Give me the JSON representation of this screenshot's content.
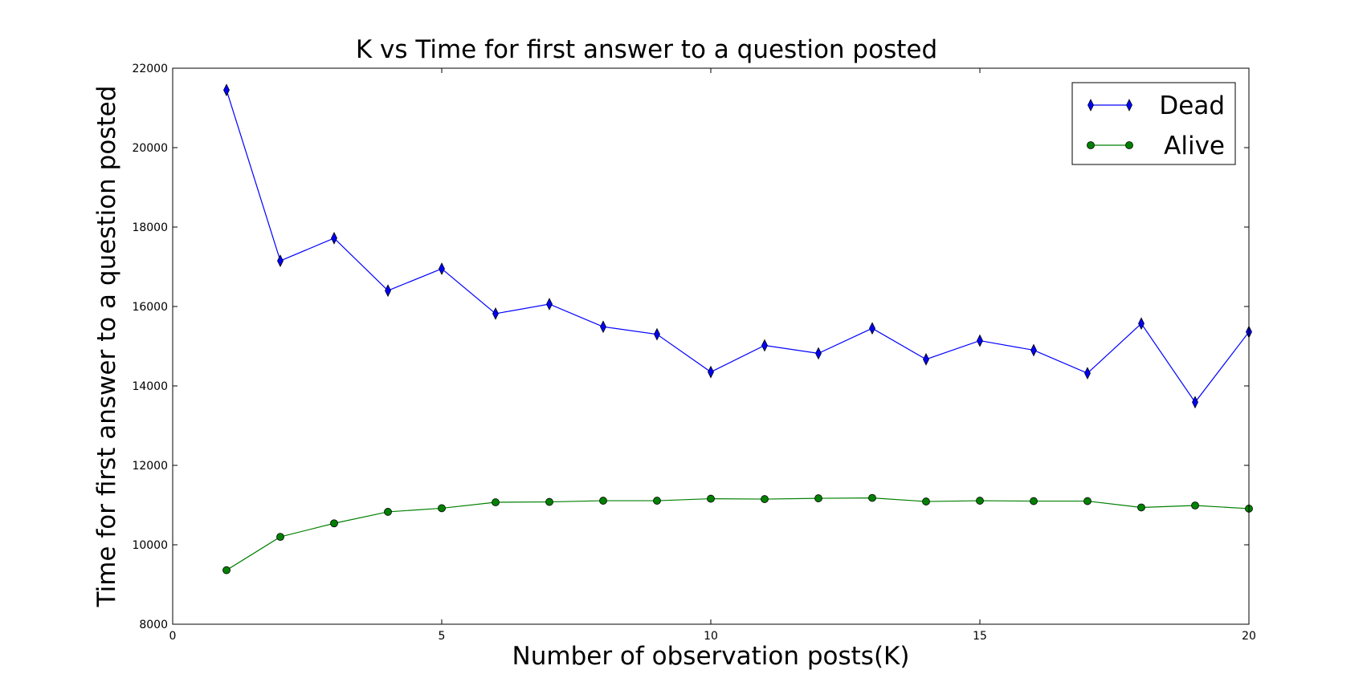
{
  "chart_data": {
    "type": "line",
    "title": "K vs Time for first answer to a question posted",
    "xlabel": "Number of observation posts(K)",
    "ylabel": "Time for first answer to a question posted",
    "xlim": [
      0,
      20
    ],
    "ylim": [
      8000,
      22000
    ],
    "xticks": [
      0,
      5,
      10,
      15,
      20
    ],
    "yticks": [
      8000,
      10000,
      12000,
      14000,
      16000,
      18000,
      20000,
      22000
    ],
    "grid": false,
    "legend_position": "top-right",
    "x": [
      1,
      2,
      3,
      4,
      5,
      6,
      7,
      8,
      9,
      10,
      11,
      12,
      13,
      14,
      15,
      16,
      17,
      18,
      19,
      20
    ],
    "series": [
      {
        "name": "Dead",
        "color": "#0000ff",
        "marker": "thin-diamond",
        "values": [
          21450,
          17150,
          17720,
          16400,
          16950,
          15820,
          16060,
          15490,
          15300,
          14350,
          15020,
          14820,
          15450,
          14670,
          15140,
          14900,
          14320,
          15570,
          13590,
          15360
        ]
      },
      {
        "name": "Alive",
        "color": "#008000",
        "marker": "circle",
        "values": [
          9360,
          10200,
          10540,
          10830,
          10920,
          11070,
          11080,
          11110,
          11110,
          11160,
          11150,
          11170,
          11180,
          11090,
          11110,
          11100,
          11100,
          10940,
          10990,
          10910
        ]
      }
    ]
  }
}
